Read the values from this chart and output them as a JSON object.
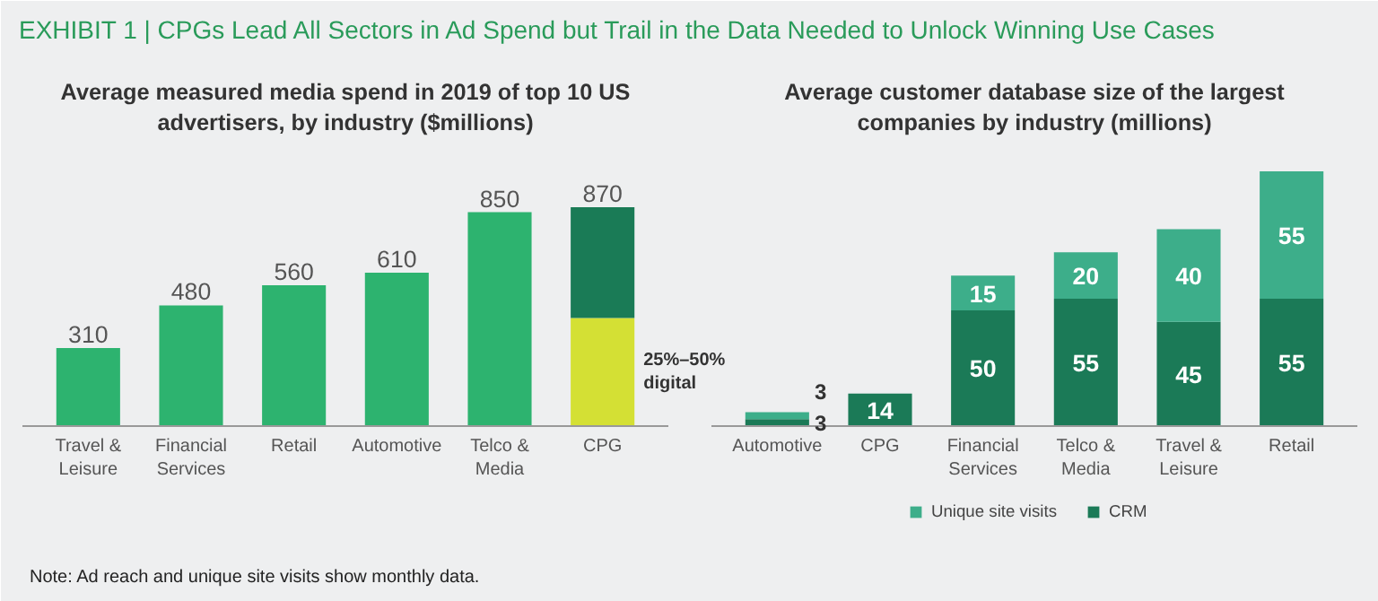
{
  "chart_data": [
    {
      "type": "other",
      "title": "EXHIBIT 1 | CPGs Lead All Sectors in Ad Spend but Trail in the Data Needed to Unlock Winning Use Cases",
      "annotations": [
        "Note: Ad reach and unique site visits show monthly data."
      ]
    },
    {
      "type": "bar",
      "title": "Average measured media spend in 2019 of top 10 US advertisers, by industry ($millions)",
      "categories": [
        "Travel & Leisure",
        "Financial Services",
        "Retail",
        "Automotive",
        "Telco & Media",
        "CPG"
      ],
      "stacked": true,
      "series": [
        {
          "color": "#2db36f",
          "values": [
            310,
            480,
            560,
            610,
            850,
            null
          ],
          "value_labels": [
            "310",
            "480",
            "560",
            "610",
            "850",
            null
          ]
        },
        {
          "color": "#d4e034",
          "values": [
            null,
            null,
            null,
            null,
            null,
            430
          ]
        },
        {
          "color": "#1a7b56",
          "values": [
            null,
            null,
            null,
            null,
            null,
            440
          ]
        }
      ],
      "totals": [
        null,
        null,
        null,
        null,
        null,
        "870"
      ],
      "annotations": [
        "25%–50% digital"
      ],
      "legend": false
    },
    {
      "type": "bar",
      "title": "Average customer database size of the largest companies by industry (millions)",
      "categories": [
        "Automotive",
        "CPG",
        "Financial Services",
        "Telco & Media",
        "Travel & Leisure",
        "Retail"
      ],
      "stacked": true,
      "series": [
        {
          "name": "CRM",
          "color": "#1b7a57",
          "values": [
            3,
            14,
            50,
            55,
            45,
            55
          ]
        },
        {
          "name": "Unique site visits",
          "color": "#3dae8a",
          "values": [
            3,
            null,
            15,
            20,
            40,
            55
          ]
        }
      ],
      "data_labels": true,
      "legend": "bottom"
    }
  ]
}
